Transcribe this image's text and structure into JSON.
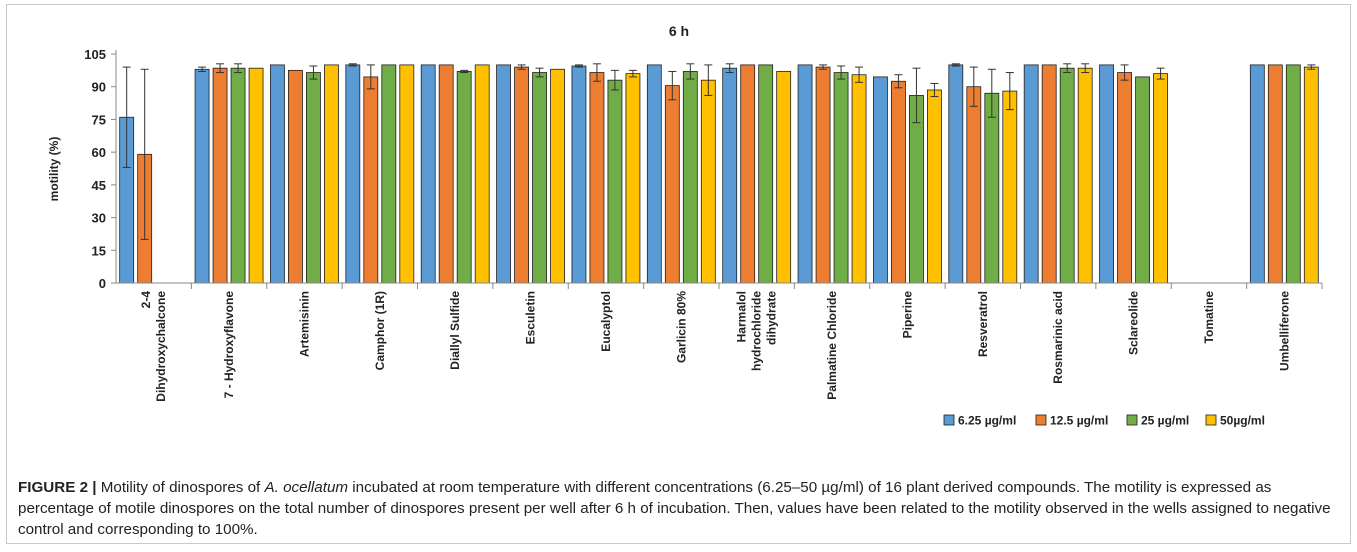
{
  "caption": {
    "label": "FIGURE 2 |",
    "text_1": " Motility of dinospores of ",
    "species": "A. ocellatum",
    "text_2": " incubated at room temperature with different concentrations (6.25–50 µg/ml) of 16 plant derived compounds. The motility is expressed as percentage of motile dinospores on the total number of dinospores present per well after 6 h of incubation. Then, values have been related to the motility observed in the wells assigned to negative control and corresponding to 100%."
  },
  "chart_data": {
    "type": "bar",
    "title": "6 h",
    "ylabel": "motility (%)",
    "xlabel": "",
    "ylim": [
      0,
      105
    ],
    "yticks": [
      0,
      15,
      30,
      45,
      60,
      75,
      90,
      105
    ],
    "grid": false,
    "legend_position": "bottom-right",
    "categories": [
      [
        "2-4",
        "Dihydroxychalcone"
      ],
      [
        "7 - Hydroxyflavone"
      ],
      [
        "Artemisinin"
      ],
      [
        "Camphor (1R)"
      ],
      [
        "Diallyl Sulfide"
      ],
      [
        "Esculetin"
      ],
      [
        "Eucalyptol"
      ],
      [
        "Garlicin 80%"
      ],
      [
        "Harmalol",
        "hydrochloride",
        "dihydrate"
      ],
      [
        "Palmatine Chloride"
      ],
      [
        "Piperine"
      ],
      [
        "Resveratrol"
      ],
      [
        "Rosmarinic acid"
      ],
      [
        "Sclareolide"
      ],
      [
        "Tomatine"
      ],
      [
        "Umbelliferone"
      ]
    ],
    "series": [
      {
        "name": "6.25 µg/ml",
        "color": "#5b9bd5",
        "values": [
          76,
          98,
          100,
          100,
          100,
          100,
          99.5,
          100,
          98.5,
          100,
          94.5,
          100,
          100,
          100,
          0,
          100
        ],
        "errors": [
          23,
          1,
          0,
          0.5,
          0,
          0,
          0.5,
          0,
          2,
          0,
          0,
          0.5,
          0,
          0,
          0,
          0
        ]
      },
      {
        "name": "12.5 µg/ml",
        "color": "#ed7d31",
        "values": [
          59,
          98.5,
          97.5,
          94.5,
          100,
          99,
          96.5,
          90.5,
          100,
          99,
          92.5,
          90,
          100,
          96.5,
          0,
          100
        ],
        "errors": [
          39,
          2,
          0,
          5.5,
          0,
          1,
          4,
          6.5,
          0,
          1,
          3,
          9,
          0,
          3.5,
          0,
          0
        ]
      },
      {
        "name": "25 µg/ml",
        "color": "#70ad47",
        "values": [
          0,
          98.5,
          96.5,
          100,
          97,
          96.5,
          93,
          97,
          100,
          96.5,
          86,
          87,
          98.5,
          94.5,
          0,
          100
        ],
        "errors": [
          0,
          2,
          3,
          0,
          0.5,
          2,
          4.5,
          3.5,
          0,
          3,
          12.5,
          11,
          2,
          0,
          0,
          0
        ]
      },
      {
        "name": "50µg/ml",
        "color": "#ffc000",
        "values": [
          0,
          98.5,
          100,
          100,
          100,
          98,
          96,
          93,
          97,
          95.5,
          88.5,
          88,
          98.5,
          96,
          0,
          99
        ],
        "errors": [
          0,
          0,
          0,
          0,
          0,
          0,
          1.5,
          7,
          0,
          3.5,
          3,
          8.5,
          2,
          2.5,
          0,
          1
        ]
      }
    ]
  }
}
